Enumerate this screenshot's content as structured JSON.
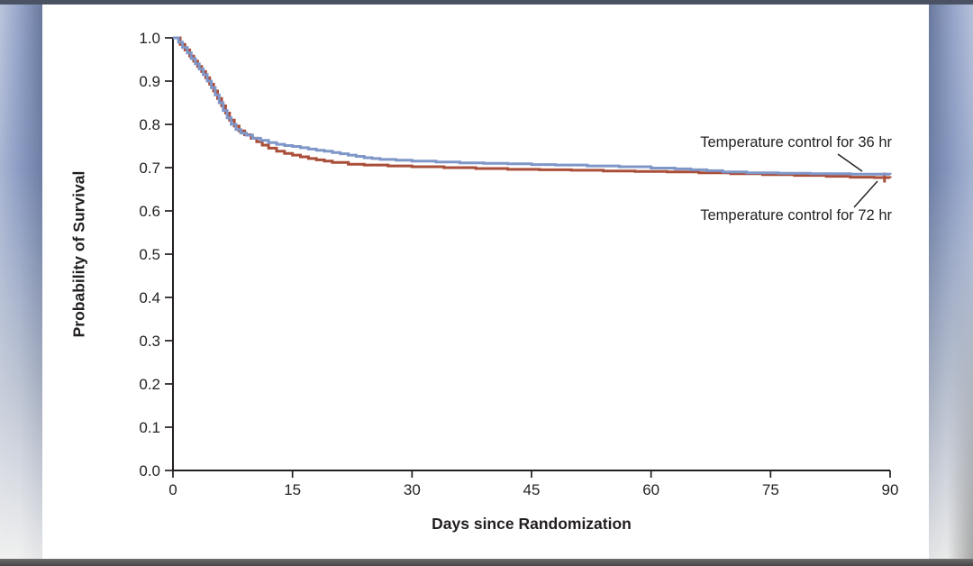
{
  "colors": {
    "curve_36hr_blue": "#7f96c8",
    "curve_72hr_red": "#a94e39",
    "axis_ink": "#231f20",
    "frame_top_band": "#4a5263",
    "frame_edge_blue": "#8b9cc3"
  },
  "chart_data": {
    "type": "line",
    "subtype": "kaplan-meier-step",
    "title": "",
    "xlabel": "Days since Randomization",
    "ylabel": "Probability of Survival",
    "xlim": [
      0,
      90
    ],
    "ylim": [
      0.0,
      1.0
    ],
    "grid": false,
    "legend_position": "inline-annotations",
    "x_ticks": [
      0,
      15,
      30,
      45,
      60,
      75,
      90
    ],
    "x_tick_labels": [
      "0",
      "15",
      "30",
      "45",
      "60",
      "75",
      "90"
    ],
    "y_ticks": [
      0.0,
      0.1,
      0.2,
      0.3,
      0.4,
      0.5,
      0.6,
      0.7,
      0.8,
      0.9,
      1.0
    ],
    "y_tick_labels": [
      "0.0",
      "0.1",
      "0.2",
      "0.3",
      "0.4",
      "0.5",
      "0.6",
      "0.7",
      "0.8",
      "0.9",
      "1.0"
    ],
    "series": [
      {
        "name": "Temperature control for 36 hr",
        "color": "#7f96c8",
        "points": [
          [
            0,
            1.0
          ],
          [
            0.7,
            0.99
          ],
          [
            1.2,
            0.978
          ],
          [
            1.8,
            0.965
          ],
          [
            2.3,
            0.952
          ],
          [
            2.8,
            0.94
          ],
          [
            3.3,
            0.928
          ],
          [
            3.8,
            0.915
          ],
          [
            4.3,
            0.9
          ],
          [
            4.8,
            0.885
          ],
          [
            5.3,
            0.868
          ],
          [
            5.8,
            0.85
          ],
          [
            6.3,
            0.832
          ],
          [
            6.8,
            0.815
          ],
          [
            7.3,
            0.8
          ],
          [
            7.9,
            0.788
          ],
          [
            8.5,
            0.78
          ],
          [
            9.2,
            0.775
          ],
          [
            10,
            0.768
          ],
          [
            11,
            0.763
          ],
          [
            12,
            0.758
          ],
          [
            13,
            0.754
          ],
          [
            14,
            0.751
          ],
          [
            15,
            0.749
          ],
          [
            16,
            0.746
          ],
          [
            17,
            0.743
          ],
          [
            18,
            0.74
          ],
          [
            19,
            0.738
          ],
          [
            20,
            0.735
          ],
          [
            21,
            0.732
          ],
          [
            22,
            0.729
          ],
          [
            23,
            0.726
          ],
          [
            24,
            0.723
          ],
          [
            25,
            0.721
          ],
          [
            26,
            0.719
          ],
          [
            28,
            0.717
          ],
          [
            30,
            0.715
          ],
          [
            33,
            0.713
          ],
          [
            36,
            0.711
          ],
          [
            39,
            0.71
          ],
          [
            42,
            0.709
          ],
          [
            45,
            0.707
          ],
          [
            48,
            0.706
          ],
          [
            52,
            0.704
          ],
          [
            56,
            0.702
          ],
          [
            60,
            0.699
          ],
          [
            63,
            0.697
          ],
          [
            65,
            0.695
          ],
          [
            67,
            0.693
          ],
          [
            69,
            0.69
          ],
          [
            72,
            0.688
          ],
          [
            76,
            0.687
          ],
          [
            80,
            0.686
          ],
          [
            85,
            0.685
          ],
          [
            90,
            0.684
          ]
        ],
        "censor_marks": []
      },
      {
        "name": "Temperature control for 72 hr",
        "color": "#a94e39",
        "points": [
          [
            0,
            1.0
          ],
          [
            0.9,
            0.985
          ],
          [
            1.5,
            0.972
          ],
          [
            2.1,
            0.958
          ],
          [
            2.6,
            0.946
          ],
          [
            3.1,
            0.934
          ],
          [
            3.6,
            0.922
          ],
          [
            4.1,
            0.908
          ],
          [
            4.6,
            0.893
          ],
          [
            5.1,
            0.877
          ],
          [
            5.6,
            0.86
          ],
          [
            6.1,
            0.843
          ],
          [
            6.6,
            0.826
          ],
          [
            7.1,
            0.81
          ],
          [
            7.7,
            0.796
          ],
          [
            8.3,
            0.785
          ],
          [
            9,
            0.776
          ],
          [
            9.8,
            0.768
          ],
          [
            10.5,
            0.76
          ],
          [
            11.2,
            0.752
          ],
          [
            12,
            0.745
          ],
          [
            13,
            0.738
          ],
          [
            14,
            0.733
          ],
          [
            15,
            0.729
          ],
          [
            16,
            0.725
          ],
          [
            17,
            0.721
          ],
          [
            18,
            0.718
          ],
          [
            19,
            0.715
          ],
          [
            20,
            0.712
          ],
          [
            22,
            0.708
          ],
          [
            24,
            0.706
          ],
          [
            27,
            0.704
          ],
          [
            30,
            0.702
          ],
          [
            34,
            0.7
          ],
          [
            38,
            0.698
          ],
          [
            42,
            0.696
          ],
          [
            46,
            0.695
          ],
          [
            50,
            0.694
          ],
          [
            54,
            0.692
          ],
          [
            58,
            0.691
          ],
          [
            62,
            0.69
          ],
          [
            66,
            0.688
          ],
          [
            70,
            0.686
          ],
          [
            74,
            0.684
          ],
          [
            78,
            0.682
          ],
          [
            82,
            0.68
          ],
          [
            85,
            0.678
          ],
          [
            88,
            0.677
          ],
          [
            90,
            0.676
          ]
        ],
        "censor_marks": [
          [
            89.3,
            0.676
          ]
        ]
      }
    ]
  }
}
